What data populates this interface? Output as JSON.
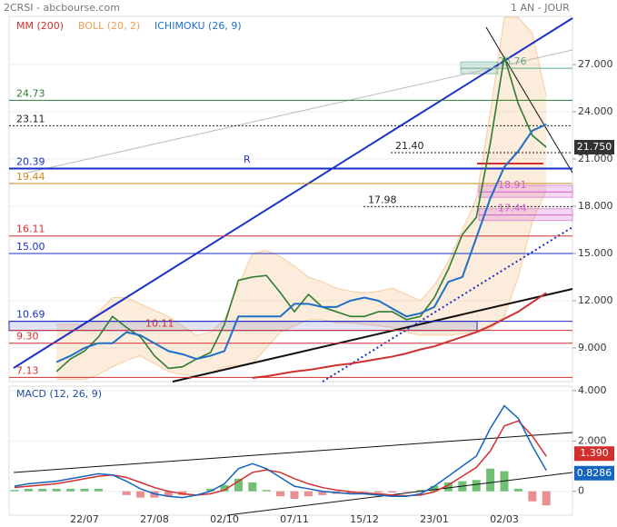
{
  "header": {
    "source": "2CRSI - abcbourse.com",
    "period": "1 AN - JOUR"
  },
  "chart_data": [
    {
      "type": "line",
      "categories": [
        null,
        null,
        null,
        null,
        null,
        "22/07",
        null,
        null,
        null,
        null,
        "27/08",
        null,
        null,
        null,
        null,
        "02/10",
        null,
        null,
        null,
        null,
        "07/11",
        null,
        null,
        null,
        null,
        "15/12",
        null,
        null,
        null,
        null,
        "23/01",
        null,
        null,
        null,
        null,
        "02/03",
        null,
        null,
        null
      ],
      "close": {
        "color": "#2e7d32",
        "values": [
          null,
          null,
          null,
          7.5,
          8.3,
          8.8,
          9.7,
          11.0,
          10.3,
          9.7,
          8.5,
          7.7,
          7.8,
          8.3,
          8.7,
          10.5,
          13.3,
          13.5,
          13.6,
          12.5,
          11.3,
          12.4,
          11.6,
          11.3,
          11.0,
          11.0,
          11.3,
          11.3,
          10.8,
          11.0,
          12.2,
          14.0,
          16.2,
          17.3,
          22.0,
          27.5,
          24.5,
          22.5,
          21.75
        ]
      },
      "series": [
        {
          "name": "MM (200)",
          "color": "#d32f2f",
          "values": [
            null,
            null,
            null,
            null,
            null,
            null,
            null,
            null,
            null,
            null,
            null,
            null,
            null,
            null,
            null,
            null,
            null,
            7.1,
            7.2,
            7.35,
            7.5,
            7.6,
            7.75,
            7.9,
            8.0,
            8.15,
            8.3,
            8.45,
            8.65,
            8.9,
            9.1,
            9.4,
            9.7,
            10.0,
            10.4,
            10.85,
            11.3,
            11.9,
            12.5
          ]
        },
        {
          "name": "ICHIMOKU (26, 9)",
          "color": "#1e6fc8",
          "values": [
            null,
            null,
            null,
            8.1,
            8.5,
            9.0,
            9.3,
            9.3,
            10.0,
            9.8,
            9.3,
            8.8,
            8.6,
            8.3,
            8.5,
            8.8,
            11.0,
            11.0,
            11.0,
            11.0,
            11.8,
            11.8,
            11.6,
            11.6,
            12.0,
            12.2,
            12.0,
            11.5,
            11.0,
            11.2,
            11.6,
            13.2,
            13.5,
            16.0,
            18.5,
            20.5,
            21.5,
            22.8,
            23.2
          ]
        }
      ],
      "bollinger": {
        "name": "BOLL (20, 2)",
        "color": "#f3a85b",
        "upper": [
          null,
          null,
          null,
          10.5,
          10.5,
          10.5,
          11.3,
          12.2,
          12.2,
          11.8,
          11.4,
          11.0,
          10.4,
          9.8,
          10.0,
          10.8,
          13.0,
          15.0,
          15.2,
          14.8,
          14.2,
          13.5,
          13.2,
          12.8,
          12.6,
          12.5,
          12.6,
          12.8,
          12.4,
          12.0,
          13.0,
          14.5,
          16.5,
          18.5,
          24.0,
          30.0,
          30.0,
          29.0,
          25.0
        ],
        "lower": [
          null,
          null,
          null,
          7.0,
          7.0,
          7.0,
          7.3,
          7.8,
          8.2,
          8.5,
          8.0,
          7.5,
          7.3,
          7.2,
          7.4,
          7.8,
          7.9,
          8.0,
          9.0,
          10.0,
          10.4,
          10.8,
          10.8,
          10.6,
          10.6,
          10.5,
          10.4,
          10.3,
          10.0,
          9.8,
          9.8,
          9.8,
          9.9,
          10.0,
          10.2,
          11.0,
          13.5,
          17.0,
          19.0
        ]
      },
      "levels": [
        {
          "value": 24.73,
          "color": "#2e7d32"
        },
        {
          "value": 23.11,
          "color": "#222"
        },
        {
          "value": 21.4,
          "label": "21.40",
          "color": "#222"
        },
        {
          "value": 20.39,
          "color": "#1a2fc9"
        },
        {
          "value": 19.44,
          "color": "#c8891c"
        },
        {
          "value": 17.98,
          "color": "#222"
        },
        {
          "value": 16.11,
          "color": "#d32f2f"
        },
        {
          "value": 15,
          "label": "15.00",
          "color": "#1a2fc9"
        },
        {
          "value": 10.69,
          "color": "#1a2fc9"
        },
        {
          "value": 10.11,
          "color": "#d32f2f"
        },
        {
          "value": 9.3,
          "label": "9.30",
          "color": "#d32f2f"
        },
        {
          "value": 7.13,
          "color": "#d32f2f"
        },
        {
          "value": 26.76,
          "color": "#5fa98a"
        },
        {
          "value": 18.91,
          "color": "#d05fd0"
        },
        {
          "value": 17.44,
          "color": "#d05fd0"
        }
      ],
      "annotation": "R",
      "last_price": {
        "value": 21.75,
        "label": "21.750"
      },
      "ylim": [
        6.86,
        30.06
      ],
      "yticks": [
        {
          "value": 9,
          "label": "9.000"
        },
        {
          "value": 12,
          "label": "12.000"
        },
        {
          "value": 15,
          "label": "15.000"
        },
        {
          "value": 18,
          "label": "18.000"
        },
        {
          "value": 21,
          "label": "21.000"
        },
        {
          "value": 24,
          "label": "24.000"
        },
        {
          "value": 27,
          "label": "27.000"
        }
      ],
      "grid": true
    },
    {
      "type": "macd",
      "title": "MACD (12, 26, 9)",
      "macd": {
        "color": "#1565c0",
        "values": [
          0.2,
          0.3,
          0.35,
          0.4,
          0.5,
          0.6,
          0.7,
          0.65,
          0.4,
          0.1,
          -0.1,
          -0.2,
          -0.25,
          -0.15,
          0,
          0.3,
          0.9,
          1.1,
          0.9,
          0.55,
          0.2,
          0.1,
          0,
          -0.05,
          -0.1,
          -0.1,
          -0.15,
          -0.2,
          -0.2,
          -0.1,
          0.2,
          0.6,
          1.0,
          1.4,
          2.5,
          3.4,
          2.9,
          1.8,
          0.8286
        ]
      },
      "signal": {
        "color": "#d32f2f",
        "values": [
          0.15,
          0.2,
          0.25,
          0.3,
          0.4,
          0.5,
          0.6,
          0.65,
          0.55,
          0.35,
          0.15,
          0,
          -0.1,
          -0.15,
          -0.1,
          0.05,
          0.4,
          0.75,
          0.85,
          0.75,
          0.5,
          0.3,
          0.15,
          0.05,
          -0.02,
          -0.07,
          -0.1,
          -0.15,
          -0.18,
          -0.15,
          -0.02,
          0.25,
          0.6,
          0.95,
          1.6,
          2.6,
          2.8,
          2.2,
          1.39
        ]
      },
      "histogram": {
        "colors": [
          "#4caf50",
          "#e57373"
        ],
        "values": [
          0.05,
          0.1,
          0.1,
          0.1,
          0.1,
          0.1,
          0.1,
          0,
          -0.15,
          -0.25,
          -0.25,
          -0.2,
          -0.15,
          0,
          0.1,
          0.25,
          0.5,
          0.35,
          0.05,
          -0.2,
          -0.3,
          -0.2,
          -0.15,
          -0.1,
          -0.08,
          -0.03,
          -0.05,
          -0.05,
          -0.02,
          0.05,
          0.22,
          0.35,
          0.4,
          0.45,
          0.9,
          0.8,
          0.1,
          -0.4,
          -0.56
        ]
      },
      "tags": [
        {
          "value": 1.39,
          "label": "1.390",
          "color": "#d32f2f"
        },
        {
          "value": 0.8286,
          "color": "#1565c0"
        }
      ],
      "ylim": [
        -0.95,
        4.18
      ],
      "yticks": [
        {
          "value": 4,
          "label": "4.000"
        },
        {
          "value": 2,
          "label": "2.000"
        },
        0
      ],
      "grid": true
    }
  ]
}
